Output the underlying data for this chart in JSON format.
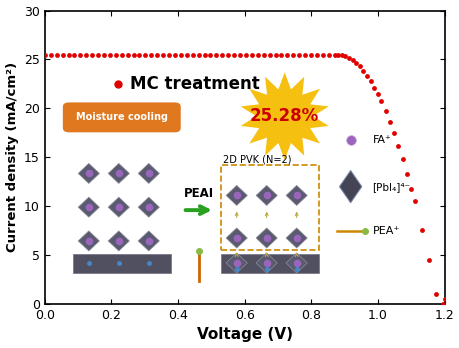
{
  "xlabel": "Voltage (V)",
  "ylabel": "Current density (mA/cm²)",
  "xlim": [
    0.0,
    1.2
  ],
  "ylim": [
    0.0,
    30.0
  ],
  "xticks": [
    0.0,
    0.2,
    0.4,
    0.6,
    0.8,
    1.0,
    1.2
  ],
  "yticks": [
    0,
    5,
    10,
    15,
    20,
    25,
    30
  ],
  "dot_color": "#e00000",
  "dot_size": 12,
  "label_mc": "MC treatment",
  "label_pce": "25.28%",
  "label_moisture": "Moisture cooling",
  "label_peai": "PEAI",
  "label_2dpvk": "2D PVK (N=2)",
  "label_fa": "FA⁺",
  "label_pbi": "[PbI₄]⁴⁻",
  "label_pea": "PEA⁺",
  "star_color": "#f5c010",
  "moisture_bg": "#e07820",
  "peai_arrow_color": "#28a020",
  "background_color": "#ffffff"
}
